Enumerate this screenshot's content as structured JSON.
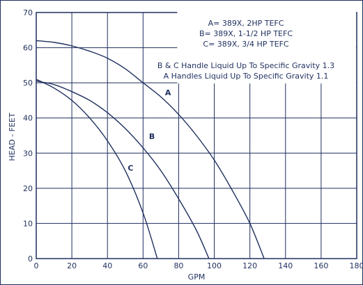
{
  "chart_data": {
    "type": "line",
    "xlabel": "GPM",
    "ylabel": "HEAD - FEET",
    "xlim": [
      0,
      180
    ],
    "ylim": [
      0,
      70
    ],
    "x_ticks": [
      "0",
      "20",
      "40",
      "60",
      "80",
      "100",
      "120",
      "140",
      "160",
      "180"
    ],
    "y_ticks": [
      "0",
      "10",
      "20",
      "30",
      "40",
      "50",
      "60",
      "70"
    ],
    "grid": true,
    "legend": [
      "A= 389X, 2HP TEFC",
      "B= 389X, 1-1/2 HP TEFC",
      "C= 389X, 3/4 HP TEFC"
    ],
    "notes": [
      "B & C Handle Liquid Up To Specific Gravity 1.3",
      "A Handles Liquid Up To Specific Gravity 1.1"
    ],
    "series": [
      {
        "name": "A",
        "x": [
          0,
          10,
          20,
          30,
          40,
          50,
          60,
          70,
          80,
          90,
          100,
          110,
          120,
          128
        ],
        "y": [
          62,
          61.5,
          60.5,
          59,
          57,
          54,
          50,
          46,
          41,
          35,
          28,
          19.5,
          10,
          0
        ]
      },
      {
        "name": "B",
        "x": [
          0,
          10,
          20,
          30,
          40,
          50,
          60,
          70,
          80,
          90,
          97
        ],
        "y": [
          50.5,
          49.5,
          47.5,
          45,
          41.5,
          37,
          31.5,
          25,
          17,
          8,
          0
        ]
      },
      {
        "name": "C",
        "x": [
          0,
          10,
          20,
          30,
          40,
          50,
          60,
          68
        ],
        "y": [
          51,
          48.5,
          45,
          40,
          33.5,
          25,
          13,
          0
        ]
      }
    ],
    "labels": [
      {
        "text": "A",
        "x": 74,
        "y": 46.5
      },
      {
        "text": "B",
        "x": 65,
        "y": 34
      },
      {
        "text": "C",
        "x": 53,
        "y": 25
      }
    ]
  }
}
